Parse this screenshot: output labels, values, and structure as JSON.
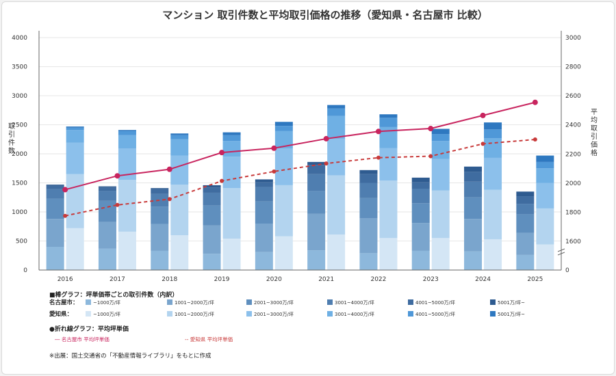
{
  "chart_data": {
    "type": "bar",
    "title": "マンション 取引件数と平均取引価格の推移（愛知県・名古屋市 比較）",
    "ylabel_left": "取引件数",
    "ylabel_right": "平均取引価格",
    "categories": [
      "2016",
      "2017",
      "2018",
      "2019",
      "2020",
      "2021",
      "2022",
      "2023",
      "2024",
      "2025"
    ],
    "ylim_left": [
      0,
      4000
    ],
    "yticks_left": [
      "0",
      "500",
      "1000",
      "1500",
      "2000",
      "2500",
      "3000",
      "3500",
      "4000"
    ],
    "ylim_right_display": [
      1600,
      3000
    ],
    "yticks_right": [
      "1600",
      "1800",
      "2000",
      "2200",
      "2400",
      "2600",
      "2800",
      "3000"
    ],
    "price_bands": [
      "~1000万/坪",
      "1001~2000万/坪",
      "2001~3000万/坪",
      "3001~4000万/坪",
      "4001~5000万/坪",
      "5001万/坪~"
    ],
    "bar_groups": [
      {
        "name": "名古屋市",
        "colors": [
          "#8db8dc",
          "#7aa5cd",
          "#5f8fbe",
          "#4f7eb0",
          "#3f6ca0",
          "#2e5b90"
        ],
        "stacks": [
          [
            400,
            480,
            350,
            160,
            60,
            20
          ],
          [
            370,
            460,
            360,
            170,
            60,
            20
          ],
          [
            330,
            460,
            300,
            220,
            80,
            20
          ],
          [
            280,
            490,
            340,
            220,
            90,
            40
          ],
          [
            310,
            490,
            380,
            250,
            80,
            50
          ],
          [
            340,
            630,
            390,
            290,
            160,
            50
          ],
          [
            290,
            600,
            350,
            260,
            150,
            70
          ],
          [
            330,
            480,
            340,
            250,
            110,
            80
          ],
          [
            320,
            560,
            370,
            270,
            170,
            90
          ],
          [
            260,
            380,
            320,
            180,
            130,
            80
          ]
        ]
      },
      {
        "name": "愛知県",
        "colors": [
          "#d4e6f5",
          "#b3d4ef",
          "#8cc0eb",
          "#6fb0e4",
          "#4f98d8",
          "#2e78c0"
        ],
        "stacks": [
          [
            720,
            930,
            540,
            220,
            40,
            20
          ],
          [
            660,
            890,
            540,
            230,
            70,
            20
          ],
          [
            600,
            870,
            500,
            280,
            70,
            30
          ],
          [
            540,
            870,
            540,
            270,
            100,
            50
          ],
          [
            580,
            880,
            630,
            300,
            90,
            70
          ],
          [
            610,
            1020,
            630,
            390,
            130,
            60
          ],
          [
            550,
            990,
            560,
            360,
            160,
            60
          ],
          [
            550,
            820,
            540,
            310,
            120,
            90
          ],
          [
            530,
            850,
            550,
            340,
            150,
            120
          ],
          [
            440,
            620,
            440,
            250,
            110,
            110
          ]
        ]
      }
    ],
    "series_lines": [
      {
        "name": "名古屋市 平均坪単価",
        "style": "solid",
        "color": "#c8245e",
        "values": [
          1955,
          2050,
          2095,
          2210,
          2240,
          2305,
          2355,
          2375,
          2465,
          2555
        ]
      },
      {
        "name": "愛知県 平均坪単価",
        "style": "dashed",
        "color": "#c83a3a",
        "values": [
          1775,
          1850,
          1890,
          2015,
          2080,
          2135,
          2175,
          2185,
          2270,
          2300
        ]
      }
    ],
    "legend": {
      "bar_heading": "■棒グラフ：坪単価帯ごとの取引件数（内訳）",
      "row_labels": [
        "名古屋市：",
        "愛知県："
      ],
      "line_heading": "●折れ線グラフ：平均坪単価",
      "line_labels": [
        "― 名古屋市 平均坪単価",
        "-- 愛知県 平均坪単価"
      ]
    },
    "source": "※出展：国土交通省の「不動産情報ライブラリ」をもとに作成",
    "grid": true
  }
}
